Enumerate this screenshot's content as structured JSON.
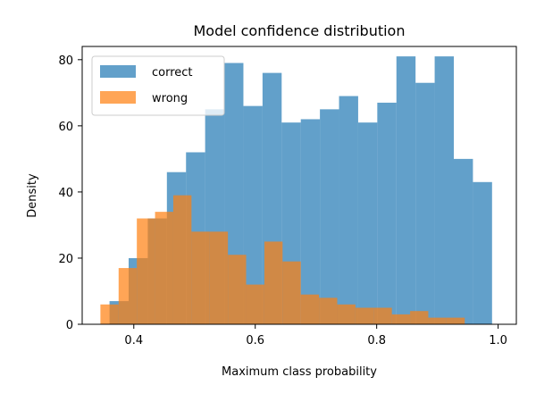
{
  "chart_data": {
    "type": "histogram",
    "title": "Model confidence distribution",
    "xlabel": "Maximum class probability",
    "ylabel": "Density",
    "xlim": [
      0.315,
      1.03
    ],
    "ylim": [
      0,
      84
    ],
    "xticks": [
      0.4,
      0.6,
      0.8,
      1.0
    ],
    "xtick_labels": [
      "0.4",
      "0.6",
      "0.8",
      "1.0"
    ],
    "yticks": [
      0,
      20,
      40,
      60,
      80
    ],
    "ytick_labels": [
      "0",
      "20",
      "40",
      "60",
      "80"
    ],
    "grid": false,
    "legend_position": "upper left",
    "series": [
      {
        "name": "correct",
        "color": "#1f77b4",
        "alpha": 0.7,
        "bins": [
          {
            "x0": 0.36,
            "x1": 0.3915,
            "value": 7
          },
          {
            "x0": 0.3915,
            "x1": 0.423,
            "value": 20
          },
          {
            "x0": 0.423,
            "x1": 0.4545,
            "value": 32
          },
          {
            "x0": 0.4545,
            "x1": 0.486,
            "value": 46
          },
          {
            "x0": 0.486,
            "x1": 0.5175,
            "value": 52
          },
          {
            "x0": 0.5175,
            "x1": 0.549,
            "value": 65
          },
          {
            "x0": 0.549,
            "x1": 0.5805,
            "value": 79
          },
          {
            "x0": 0.5805,
            "x1": 0.612,
            "value": 66
          },
          {
            "x0": 0.612,
            "x1": 0.6435,
            "value": 76
          },
          {
            "x0": 0.6435,
            "x1": 0.675,
            "value": 61
          },
          {
            "x0": 0.675,
            "x1": 0.7065,
            "value": 62
          },
          {
            "x0": 0.7065,
            "x1": 0.738,
            "value": 65
          },
          {
            "x0": 0.738,
            "x1": 0.7695,
            "value": 69
          },
          {
            "x0": 0.7695,
            "x1": 0.801,
            "value": 61
          },
          {
            "x0": 0.801,
            "x1": 0.8325,
            "value": 67
          },
          {
            "x0": 0.8325,
            "x1": 0.864,
            "value": 81
          },
          {
            "x0": 0.864,
            "x1": 0.8955,
            "value": 73
          },
          {
            "x0": 0.8955,
            "x1": 0.927,
            "value": 81
          },
          {
            "x0": 0.927,
            "x1": 0.9585,
            "value": 50
          },
          {
            "x0": 0.9585,
            "x1": 0.99,
            "value": 43
          }
        ]
      },
      {
        "name": "wrong",
        "color": "#ff7f0e",
        "alpha": 0.7,
        "bins": [
          {
            "x0": 0.345,
            "x1": 0.375,
            "value": 6
          },
          {
            "x0": 0.375,
            "x1": 0.405,
            "value": 17
          },
          {
            "x0": 0.405,
            "x1": 0.435,
            "value": 32
          },
          {
            "x0": 0.435,
            "x1": 0.465,
            "value": 34
          },
          {
            "x0": 0.465,
            "x1": 0.495,
            "value": 39
          },
          {
            "x0": 0.495,
            "x1": 0.525,
            "value": 28
          },
          {
            "x0": 0.525,
            "x1": 0.555,
            "value": 28
          },
          {
            "x0": 0.555,
            "x1": 0.585,
            "value": 21
          },
          {
            "x0": 0.585,
            "x1": 0.615,
            "value": 12
          },
          {
            "x0": 0.615,
            "x1": 0.645,
            "value": 25
          },
          {
            "x0": 0.645,
            "x1": 0.675,
            "value": 19
          },
          {
            "x0": 0.675,
            "x1": 0.705,
            "value": 9
          },
          {
            "x0": 0.705,
            "x1": 0.735,
            "value": 8
          },
          {
            "x0": 0.735,
            "x1": 0.765,
            "value": 6
          },
          {
            "x0": 0.765,
            "x1": 0.795,
            "value": 5
          },
          {
            "x0": 0.795,
            "x1": 0.825,
            "value": 5
          },
          {
            "x0": 0.825,
            "x1": 0.855,
            "value": 3
          },
          {
            "x0": 0.855,
            "x1": 0.885,
            "value": 4
          },
          {
            "x0": 0.885,
            "x1": 0.915,
            "value": 2
          },
          {
            "x0": 0.915,
            "x1": 0.945,
            "value": 2
          }
        ]
      }
    ]
  }
}
